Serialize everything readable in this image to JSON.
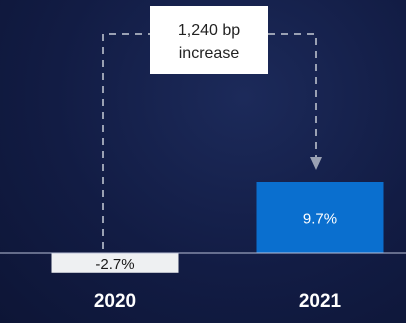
{
  "chart_data": {
    "type": "bar",
    "categories": [
      "2020",
      "2021"
    ],
    "values": [
      -2.7,
      9.7
    ],
    "value_labels": [
      "-2.7%",
      "9.7%"
    ],
    "annotation": "1,240 bp increase",
    "annotation_lines": [
      "1,240 bp",
      "increase"
    ],
    "ylim": [
      -2.7,
      9.7
    ],
    "grid": false,
    "legend": "none"
  },
  "colors": {
    "bar_2020": "#eef0f2",
    "bar_2021": "#0a6fcf",
    "label_2020": "#1a1a1a",
    "label_2021": "#ffffff",
    "axis": "#b9c0d8",
    "connector": "#9aa1b3",
    "category_text": "#ffffff",
    "callout_bg": "#ffffff",
    "callout_text": "#222222"
  }
}
